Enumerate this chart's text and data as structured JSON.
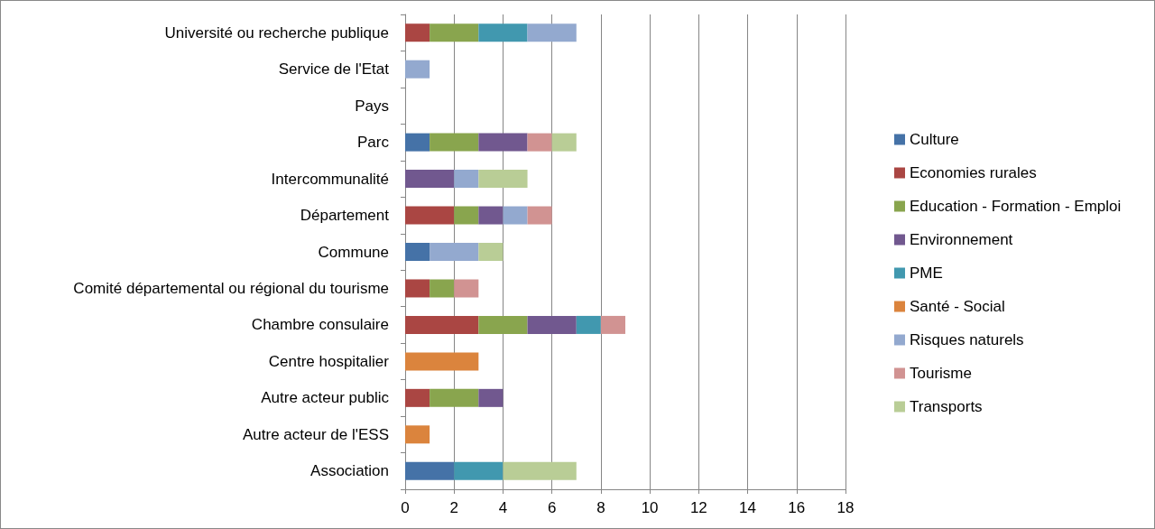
{
  "chart_data": {
    "type": "bar",
    "orientation": "horizontal",
    "stacked": true,
    "grid": "x",
    "legend": "right",
    "categories": [
      "Université ou recherche publique",
      "Service de l'Etat",
      "Pays",
      "Parc",
      "Intercommunalité",
      "Département",
      "Commune",
      "Comité départemental ou régional du tourisme",
      "Chambre consulaire",
      "Centre hospitalier",
      "Autre acteur public",
      "Autre acteur de l'ESS",
      "Association"
    ],
    "xlim": [
      0,
      18
    ],
    "xticks": [
      0,
      2,
      4,
      6,
      8,
      10,
      12,
      14,
      16,
      18
    ],
    "series": [
      {
        "name": "Culture",
        "color": "#4572a7",
        "values": [
          null,
          null,
          null,
          1,
          null,
          null,
          1,
          null,
          null,
          null,
          null,
          null,
          2
        ]
      },
      {
        "name": "Economies rurales",
        "color": "#aa4643",
        "values": [
          1,
          null,
          null,
          null,
          null,
          2,
          null,
          1,
          3,
          null,
          1,
          null,
          null
        ]
      },
      {
        "name": "Education - Formation - Emploi",
        "color": "#89a54e",
        "values": [
          2,
          null,
          null,
          2,
          null,
          1,
          null,
          1,
          2,
          null,
          2,
          null,
          null
        ]
      },
      {
        "name": "Environnement",
        "color": "#71588f",
        "values": [
          null,
          null,
          null,
          2,
          2,
          1,
          null,
          null,
          2,
          null,
          1,
          null,
          null
        ]
      },
      {
        "name": "PME",
        "color": "#4198af",
        "values": [
          2,
          null,
          null,
          null,
          null,
          null,
          null,
          null,
          1,
          null,
          null,
          null,
          2
        ]
      },
      {
        "name": "Santé - Social",
        "color": "#db843d",
        "values": [
          null,
          null,
          null,
          null,
          null,
          null,
          null,
          null,
          null,
          3,
          null,
          1,
          null
        ]
      },
      {
        "name": "Risques naturels",
        "color": "#93a9cf",
        "values": [
          2,
          1,
          null,
          null,
          1,
          1,
          2,
          null,
          null,
          null,
          null,
          null,
          null
        ]
      },
      {
        "name": "Tourisme",
        "color": "#d19392",
        "values": [
          null,
          null,
          null,
          1,
          null,
          1,
          null,
          1,
          1,
          null,
          null,
          null,
          null
        ]
      },
      {
        "name": "Transports",
        "color": "#b9cd96",
        "values": [
          null,
          null,
          null,
          1,
          2,
          null,
          1,
          null,
          null,
          null,
          null,
          null,
          3
        ]
      }
    ]
  }
}
